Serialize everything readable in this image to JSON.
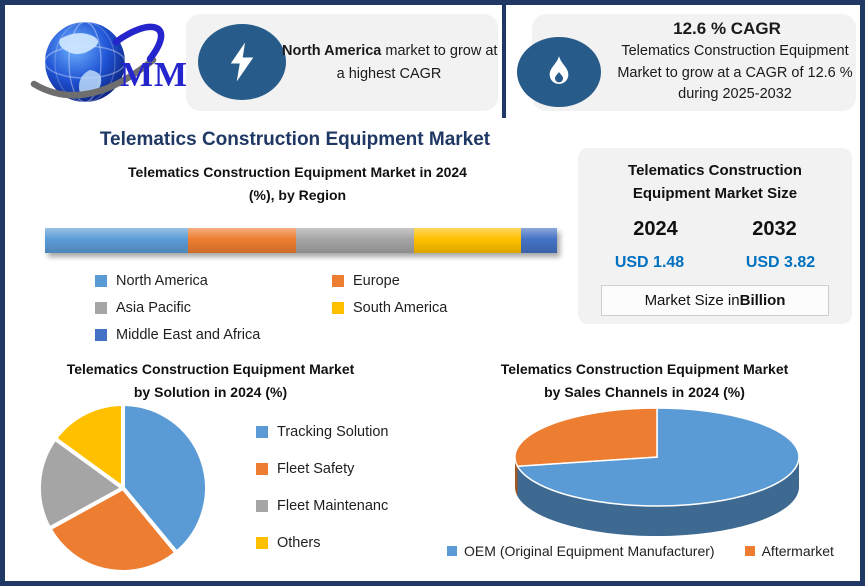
{
  "logo": {
    "text": "MMR"
  },
  "header": {
    "callout1": {
      "line1_bold": "North America",
      "line1_rest": " market to grow at",
      "line2": "a highest CAGR"
    },
    "callout2": {
      "title": "12.6 % CAGR",
      "body": "Telematics Construction Equipment Market to grow at a CAGR of 12.6 % during 2025-2032"
    }
  },
  "main_title": "Telematics Construction Equipment Market",
  "market_size_card": {
    "title_lines": [
      "Telematics Construction",
      "Equipment Market Size"
    ],
    "columns": [
      {
        "year": "2024",
        "value": "USD 1.48"
      },
      {
        "year": "2032",
        "value": "USD 3.82"
      }
    ],
    "note_prefix": "Market Size in ",
    "note_bold": "Billion"
  },
  "colors": {
    "navy": "#1F3864",
    "icon_circle": "#275B8A",
    "value_blue": "#0070C0",
    "panel_bg": "#F2F2F2"
  },
  "chart_data": [
    {
      "type": "bar",
      "variant": "horizontal-stacked",
      "title": "Telematics Construction Equipment Market in 2024 (%), by Region",
      "title_lines": [
        "Telematics Construction Equipment Market in 2024",
        "(%), by Region"
      ],
      "categories": [
        "North America",
        "Europe",
        "Asia Pacific",
        "South America",
        "Middle East and Africa"
      ],
      "values": [
        28,
        21,
        23,
        21,
        7
      ],
      "colors": [
        "#5B9BD5",
        "#ED7D31",
        "#A5A5A5",
        "#FFC000",
        "#4472C4"
      ],
      "unit": "%",
      "legend_position": "bottom"
    },
    {
      "type": "pie",
      "title": "Telematics Construction Equipment Market by Solution in 2024 (%)",
      "title_lines": [
        "Telematics Construction Equipment Market",
        "by Solution in 2024 (%)"
      ],
      "categories": [
        "Tracking Solution",
        "Fleet Safety",
        "Fleet Maintenanc",
        "Others"
      ],
      "values": [
        39,
        28,
        18,
        15
      ],
      "colors": [
        "#5B9BD5",
        "#ED7D31",
        "#A5A5A5",
        "#FFC000"
      ],
      "unit": "%",
      "legend_position": "right"
    },
    {
      "type": "pie",
      "variant": "3d",
      "title": "Telematics Construction Equipment Market by Sales Channels in 2024 (%)",
      "title_lines": [
        "Telematics Construction Equipment Market",
        "by Sales Channels in 2024 (%)"
      ],
      "categories": [
        "OEM (Original Equipment Manufacturer)",
        "Aftermarket"
      ],
      "values": [
        72,
        28
      ],
      "colors": [
        "#5B9BD5",
        "#ED7D31"
      ],
      "unit": "%",
      "legend_position": "bottom"
    }
  ]
}
